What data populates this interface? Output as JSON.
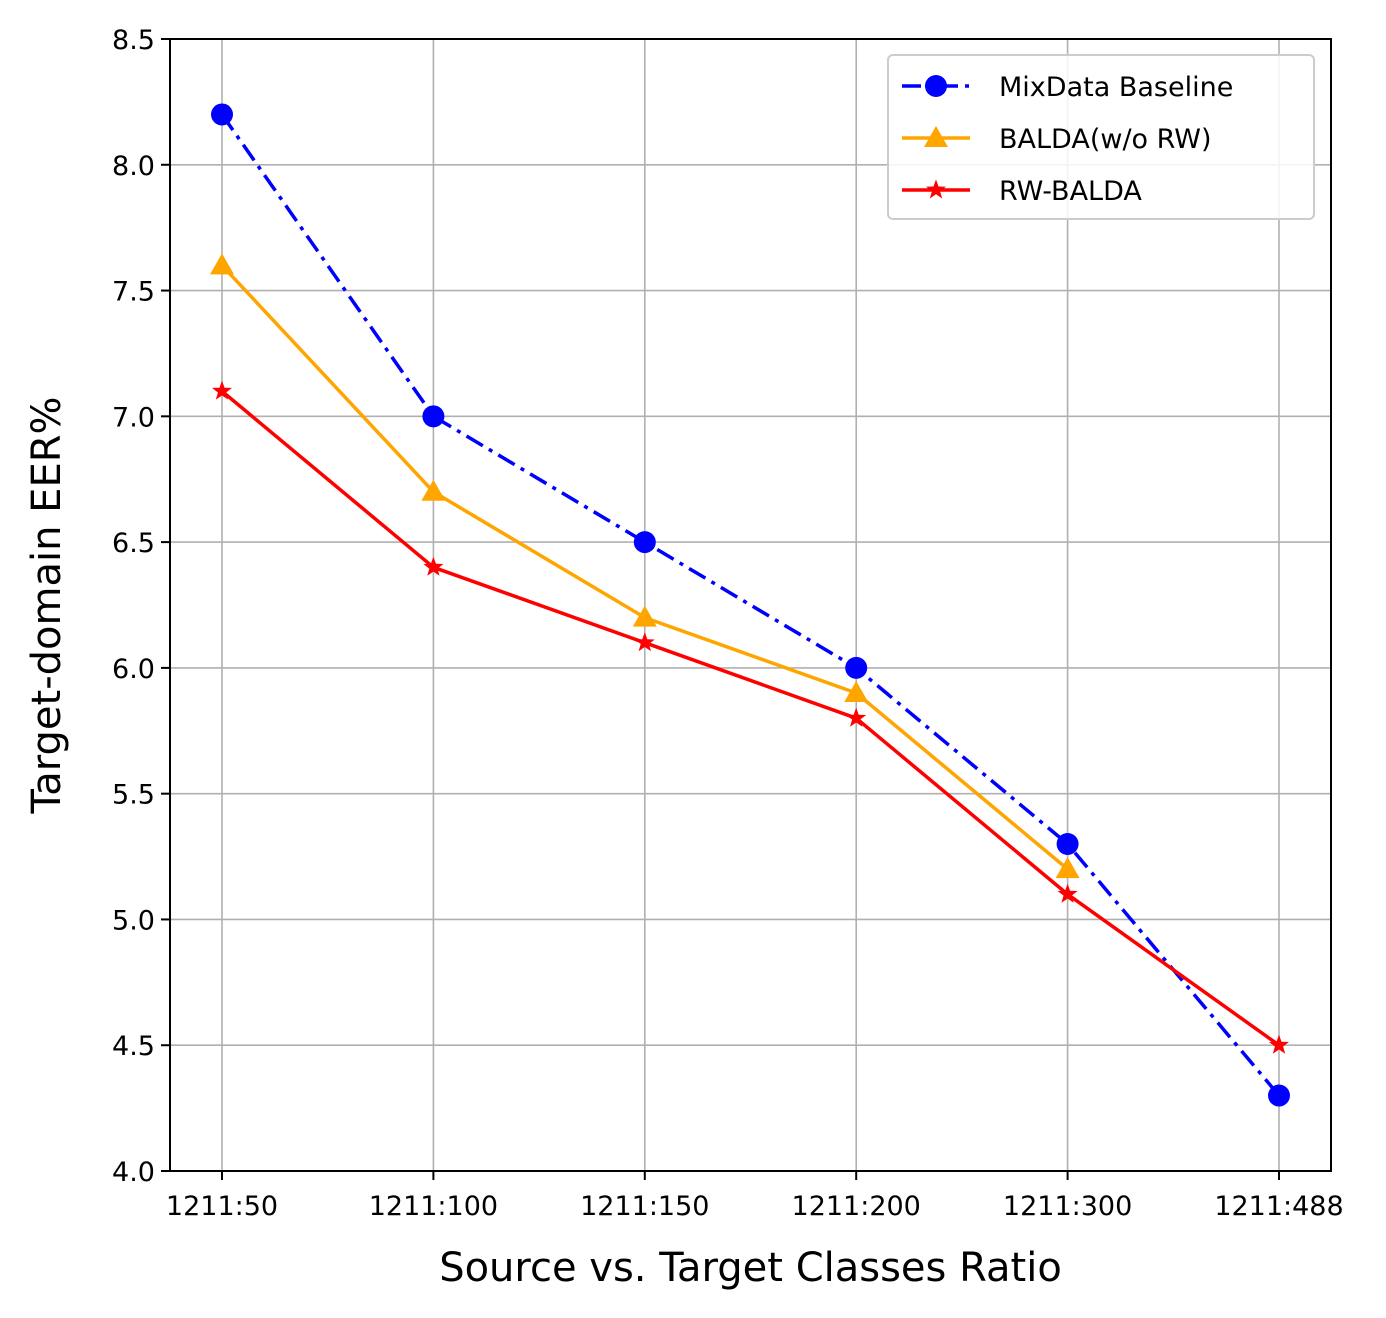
{
  "chart_data": {
    "type": "line",
    "xlabel": "Source vs. Target Classes Ratio",
    "ylabel": "Target-domain EER%",
    "categories": [
      "1211:50",
      "1211:100",
      "1211:150",
      "1211:200",
      "1211:300",
      "1211:488"
    ],
    "ylim": [
      4.0,
      8.5
    ],
    "yticks": [
      "4.0",
      "4.5",
      "5.0",
      "5.5",
      "6.0",
      "6.5",
      "7.0",
      "7.5",
      "8.0",
      "8.5"
    ],
    "grid": true,
    "legend_position": "top-right",
    "series": [
      {
        "name": "MixData Baseline",
        "values": [
          8.2,
          7.0,
          6.5,
          6.0,
          5.3,
          4.3
        ],
        "color": "#0000ff",
        "line_style": "dash-dot",
        "marker": "circle"
      },
      {
        "name": "BALDA(w/o RW)",
        "values": [
          7.6,
          6.7,
          6.2,
          5.9,
          5.2,
          null
        ],
        "color": "#ffa500",
        "line_style": "solid",
        "marker": "triangle"
      },
      {
        "name": "RW-BALDA",
        "values": [
          7.1,
          6.4,
          6.1,
          5.8,
          5.1,
          4.5
        ],
        "color": "#ff0000",
        "line_style": "solid",
        "marker": "star"
      }
    ]
  }
}
